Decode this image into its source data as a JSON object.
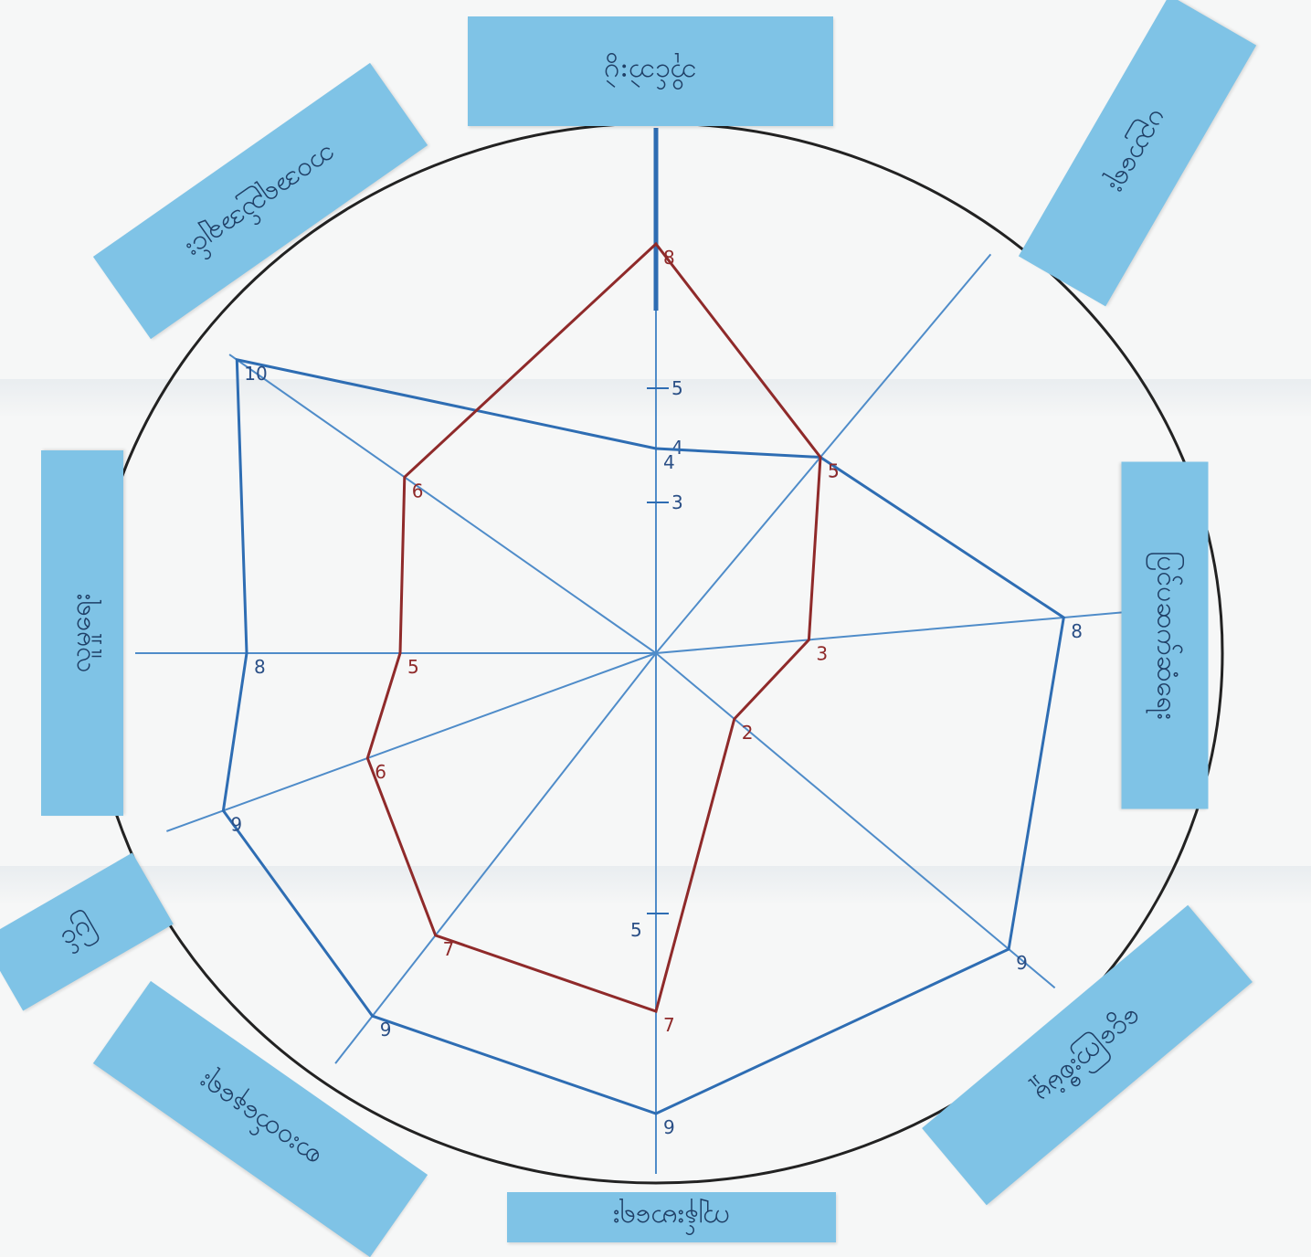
{
  "categories": [
    {
      "id": "top",
      "label": "ဘိုင်ဘဲ:ပွဲ",
      "blue": 4,
      "red": 8
    },
    {
      "id": "top-right",
      "label": "ပညာရေး",
      "blue": 5,
      "red": 5
    },
    {
      "id": "right",
      "label": "ပြင်ပဆက်ဆံရေး",
      "blue": 8,
      "red": 3
    },
    {
      "id": "bottom-right",
      "label": "ငွေကြေးစီမံမှု",
      "blue": 9,
      "red": 2
    },
    {
      "id": "bottom",
      "label": "ကျန်းမာရေး",
      "blue": 9,
      "red": 7
    },
    {
      "id": "bottom-left",
      "label": "စားဝတ်နေရေး",
      "blue": 9,
      "red": 7
    },
    {
      "id": "left-lower",
      "label": "ပြင်",
      "blue": 9,
      "red": 6
    },
    {
      "id": "left",
      "label": "လူမှုရေး",
      "blue": 8,
      "red": 5
    },
    {
      "id": "top-left",
      "label": "ဘဝအရည်အချင်း",
      "blue": 10,
      "red": 6
    }
  ],
  "colors": {
    "circle": "#222222",
    "spokes": "#4f8cc9",
    "blue_line": "#2e6db3",
    "red_line": "#8f2a2a",
    "sticky": "#7fc3e6",
    "ink": "#1f3f66"
  },
  "center_tick_labels": [
    "5",
    "4",
    "3"
  ],
  "lower_tick_label": "5"
}
